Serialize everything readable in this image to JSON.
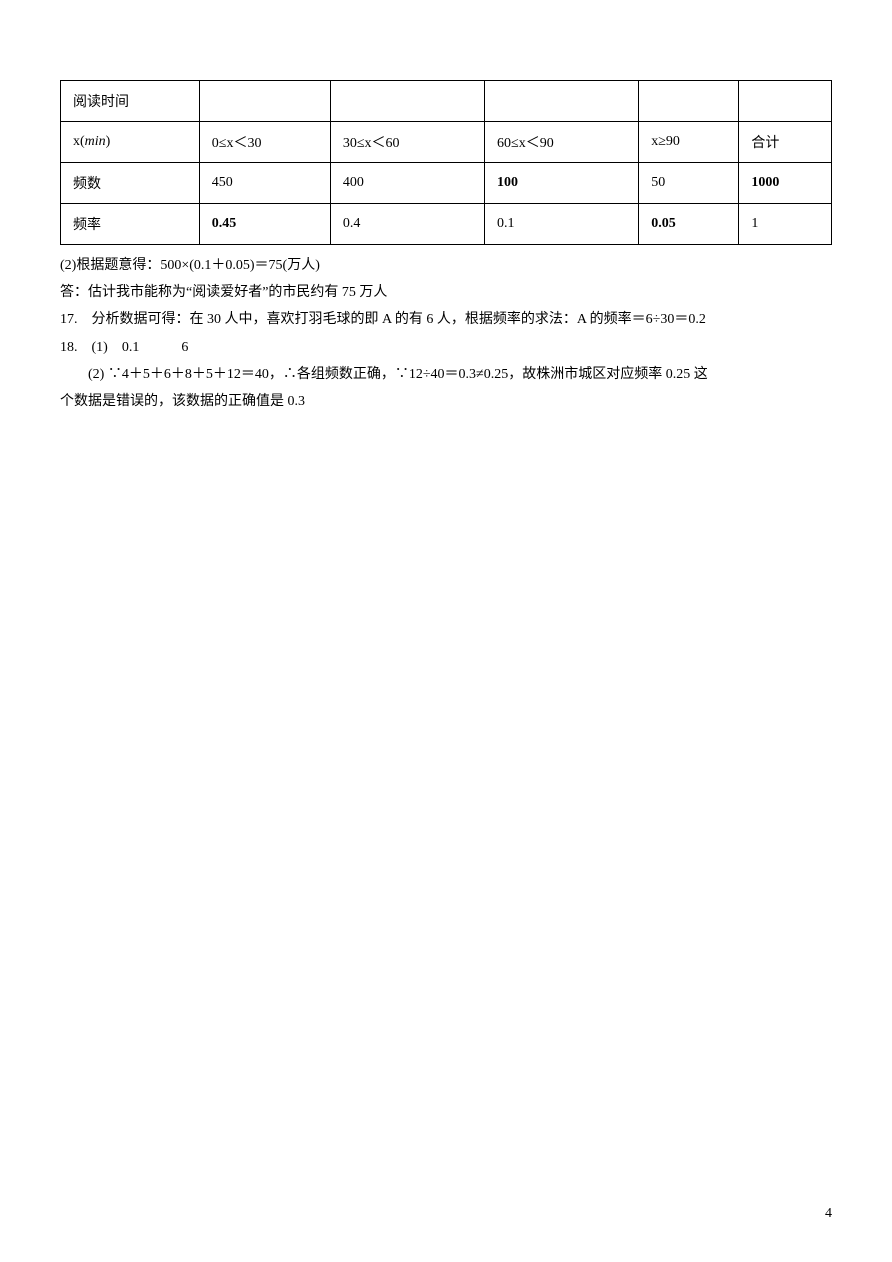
{
  "table": {
    "rows": [
      {
        "cells": [
          {
            "text": "阅读时间",
            "bold": false
          },
          {
            "text": "",
            "bold": false
          },
          {
            "text": "",
            "bold": false
          },
          {
            "text": "",
            "bold": false
          },
          {
            "text": "",
            "bold": false
          },
          {
            "text": "",
            "bold": false
          }
        ]
      },
      {
        "cells": [
          {
            "text_prefix": "x(",
            "text_italic": "min",
            "text_suffix": ")",
            "bold": false
          },
          {
            "text": "0≤x＜30",
            "bold": false
          },
          {
            "text": "30≤x＜60",
            "bold": false
          },
          {
            "text": "60≤x＜90",
            "bold": false
          },
          {
            "text": "x≥90",
            "bold": false
          },
          {
            "text": "合计",
            "bold": false
          }
        ]
      },
      {
        "cells": [
          {
            "text": "频数",
            "bold": false
          },
          {
            "text": "450",
            "bold": false
          },
          {
            "text": "400",
            "bold": false
          },
          {
            "text": "100",
            "bold": true
          },
          {
            "text": "50",
            "bold": false
          },
          {
            "text": "1000",
            "bold": true
          }
        ]
      },
      {
        "cells": [
          {
            "text": "频率",
            "bold": false
          },
          {
            "text": "0.45",
            "bold": true
          },
          {
            "text": "0.4",
            "bold": false
          },
          {
            "text": "0.1",
            "bold": false
          },
          {
            "text": "0.05",
            "bold": true
          },
          {
            "text": "1",
            "bold": false
          }
        ]
      }
    ]
  },
  "lines": {
    "line1": "(2)根据题意得：500×(0.1＋0.05)＝75(万人)",
    "line2": "答：估计我市能称为“阅读爱好者”的市民约有 75 万人",
    "line3": "17.　分析数据可得：在 30 人中，喜欢打羽毛球的即 A 的有 6 人，根据频率的求法：A 的频率＝6÷30＝0.2",
    "line4": "18.　(1)　0.1　　　6",
    "line5": "(2) ∵4＋5＋6＋8＋5＋12＝40，∴各组频数正确，∵12÷40＝0.3≠0.25，故株洲市城区对应频率 0.25 这",
    "line6": "个数据是错误的，该数据的正确值是 0.3"
  },
  "page_number": "4"
}
